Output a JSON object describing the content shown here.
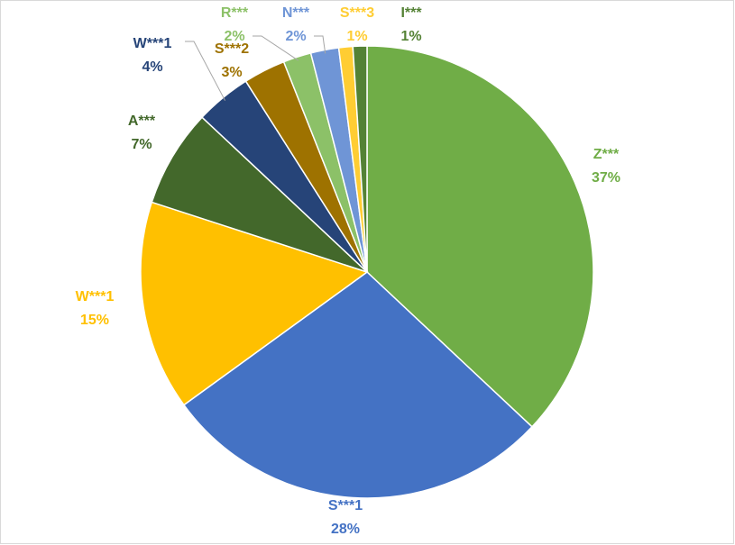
{
  "chart_data": {
    "type": "pie",
    "categories": [
      "Z***",
      "S***1",
      "W***1",
      "A***",
      "W***1",
      "S***2",
      "R***",
      "N***",
      "S***3",
      "I***"
    ],
    "values": [
      37,
      28,
      15,
      7,
      4,
      3,
      2,
      2,
      1,
      1
    ],
    "value_labels": [
      "37%",
      "28%",
      "15%",
      "7%",
      "4%",
      "3%",
      "2%",
      "2%",
      "1%",
      "1%"
    ],
    "colors": [
      "#70ad47",
      "#4472c4",
      "#ffc000",
      "#43682b",
      "#264478",
      "#9e7200",
      "#8cc168",
      "#6f95d6",
      "#ffcd33",
      "#548235"
    ]
  }
}
